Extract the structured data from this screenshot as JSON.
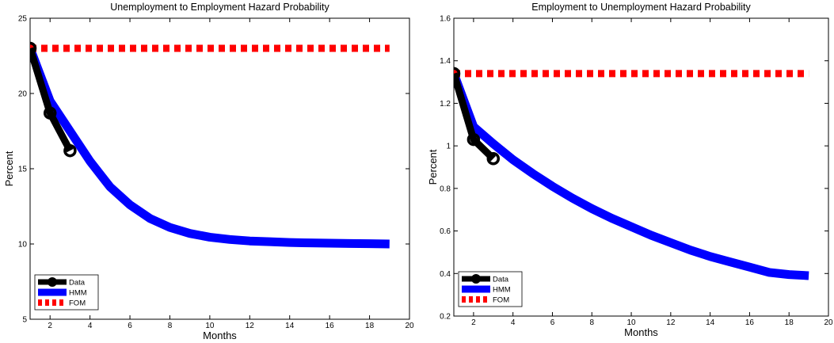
{
  "chart_data": [
    {
      "type": "line",
      "title": "Unemployment to Employment Hazard Probability",
      "xlabel": "Months",
      "ylabel": "Percent",
      "xlim": [
        1,
        20
      ],
      "ylim": [
        5,
        25
      ],
      "xticks": [
        2,
        4,
        6,
        8,
        10,
        12,
        14,
        16,
        18,
        20
      ],
      "yticks": [
        5,
        10,
        15,
        20,
        25
      ],
      "legend_position": "bottom-left",
      "grid": false,
      "series": [
        {
          "name": "Data",
          "color": "#000000",
          "style": "solid-marker",
          "x": [
            1,
            2,
            3
          ],
          "y": [
            23.0,
            18.7,
            16.2
          ]
        },
        {
          "name": "HMM",
          "color": "#0000ff",
          "style": "solid",
          "x": [
            1,
            2,
            3,
            4,
            5,
            6,
            7,
            8,
            9,
            10,
            11,
            12,
            13,
            14,
            15,
            16,
            17,
            18,
            19
          ],
          "y": [
            23.0,
            19.5,
            17.5,
            15.5,
            13.8,
            12.6,
            11.7,
            11.1,
            10.7,
            10.45,
            10.3,
            10.2,
            10.15,
            10.1,
            10.07,
            10.05,
            10.03,
            10.02,
            10.0
          ]
        },
        {
          "name": "FOM",
          "color": "#ff0000",
          "style": "dashed",
          "x": [
            1,
            19
          ],
          "y": [
            23.0,
            23.0
          ]
        }
      ]
    },
    {
      "type": "line",
      "title": "Employment to Unemployment Hazard Probability",
      "xlabel": "Months",
      "ylabel": "Percent",
      "xlim": [
        1,
        20
      ],
      "ylim": [
        0.2,
        1.6
      ],
      "xticks": [
        2,
        4,
        6,
        8,
        10,
        12,
        14,
        16,
        18,
        20
      ],
      "yticks": [
        0.2,
        0.4,
        0.6,
        0.8,
        1,
        1.2,
        1.4,
        1.6
      ],
      "legend_position": "bottom-left",
      "grid": false,
      "series": [
        {
          "name": "Data",
          "color": "#000000",
          "style": "solid-marker",
          "x": [
            1,
            2,
            3
          ],
          "y": [
            1.34,
            1.03,
            0.94
          ]
        },
        {
          "name": "HMM",
          "color": "#0000ff",
          "style": "solid",
          "x": [
            1,
            2,
            3,
            4,
            5,
            6,
            7,
            8,
            9,
            10,
            11,
            12,
            13,
            14,
            15,
            16,
            17,
            18,
            19
          ],
          "y": [
            1.34,
            1.09,
            1.01,
            0.935,
            0.87,
            0.81,
            0.755,
            0.705,
            0.66,
            0.62,
            0.58,
            0.545,
            0.51,
            0.48,
            0.455,
            0.43,
            0.405,
            0.395,
            0.39
          ]
        },
        {
          "name": "FOM",
          "color": "#ff0000",
          "style": "dashed",
          "x": [
            1,
            19
          ],
          "y": [
            1.34,
            1.34
          ]
        }
      ]
    }
  ]
}
